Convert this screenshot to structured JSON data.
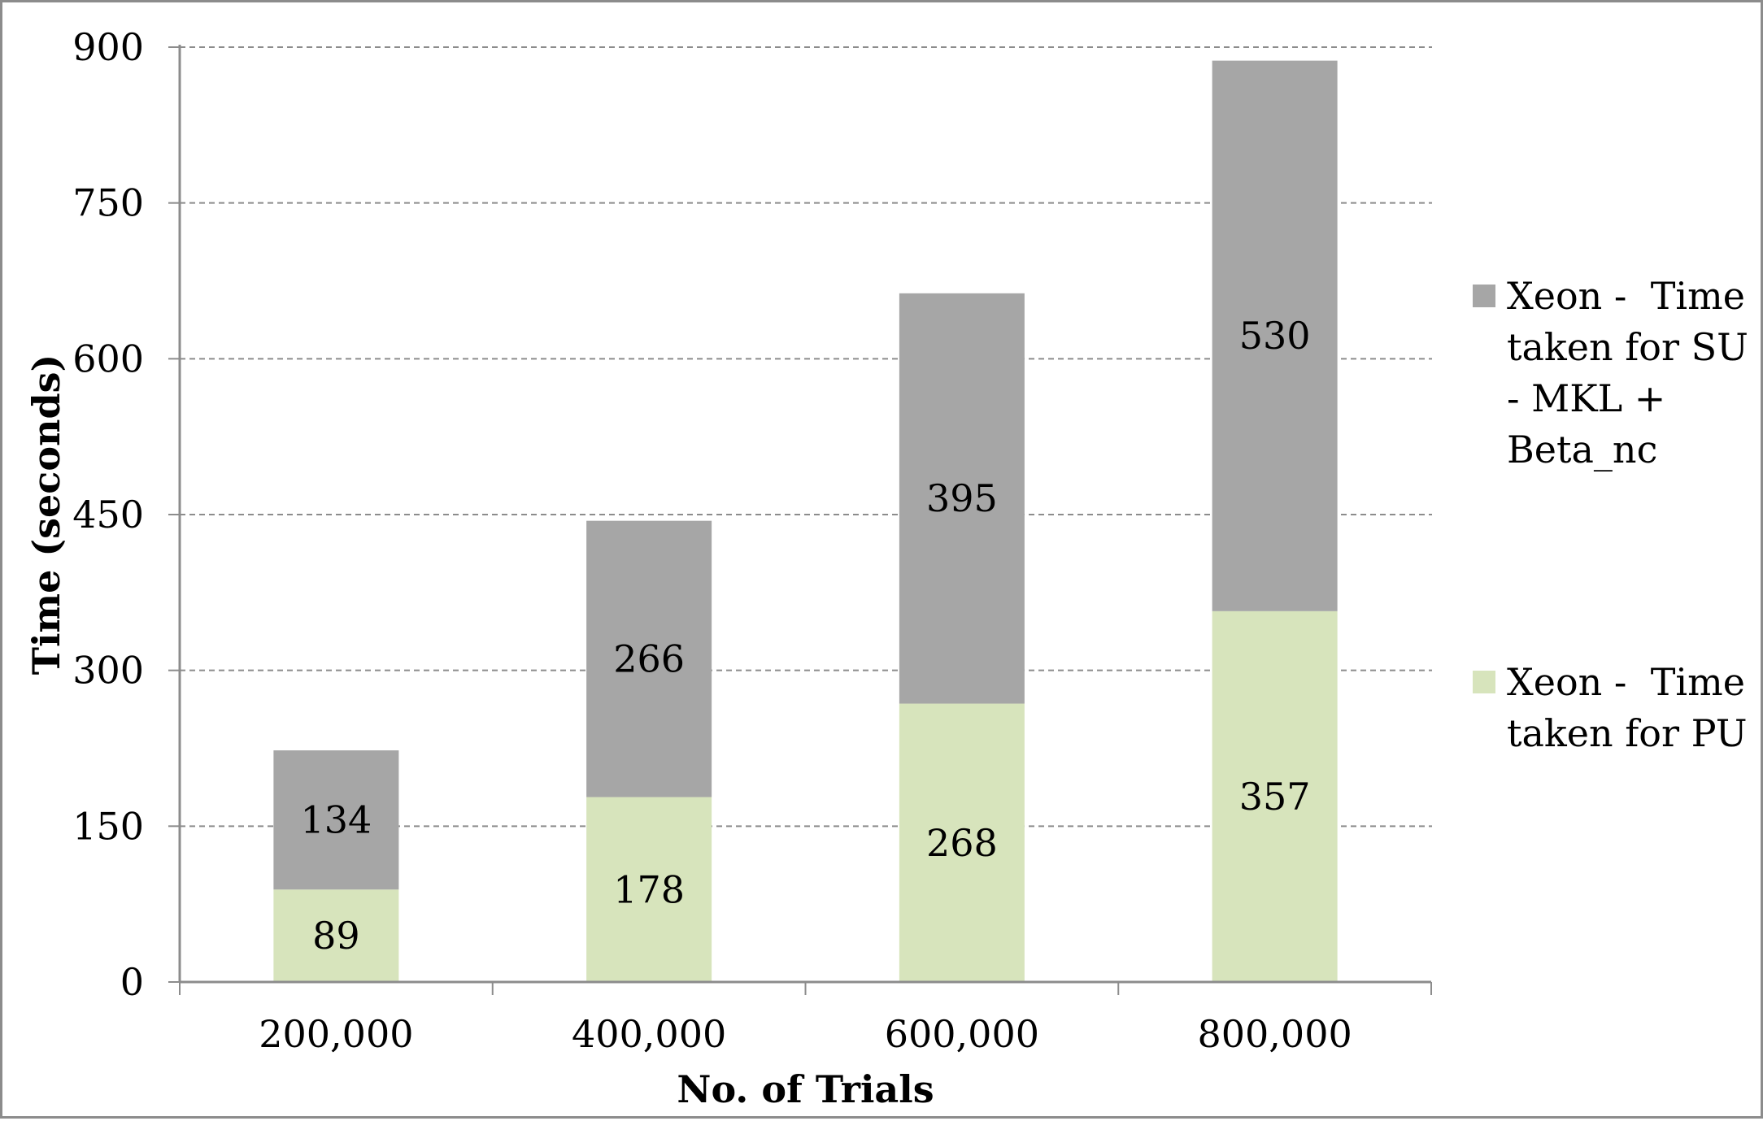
{
  "chart_data": {
    "type": "bar",
    "stacked": true,
    "categories": [
      "200,000",
      "400,000",
      "600,000",
      "800,000"
    ],
    "series": [
      {
        "name_lines": [
          "Xeon -  Time",
          "taken for PU"
        ],
        "values": [
          89,
          178,
          268,
          357
        ],
        "color": "#d7e4bc"
      },
      {
        "name_lines": [
          "Xeon -  Time",
          "taken for SU",
          "- MKL +",
          "Beta_nc"
        ],
        "values": [
          134,
          266,
          395,
          530
        ],
        "color": "#a6a6a6"
      }
    ],
    "xlabel": "No. of Trials",
    "ylabel": "Time (seconds)",
    "ylim": [
      0,
      900
    ],
    "yticks": [
      "0",
      "150",
      "300",
      "450",
      "600",
      "750",
      "900"
    ],
    "grid": true,
    "legend_position": "right"
  }
}
